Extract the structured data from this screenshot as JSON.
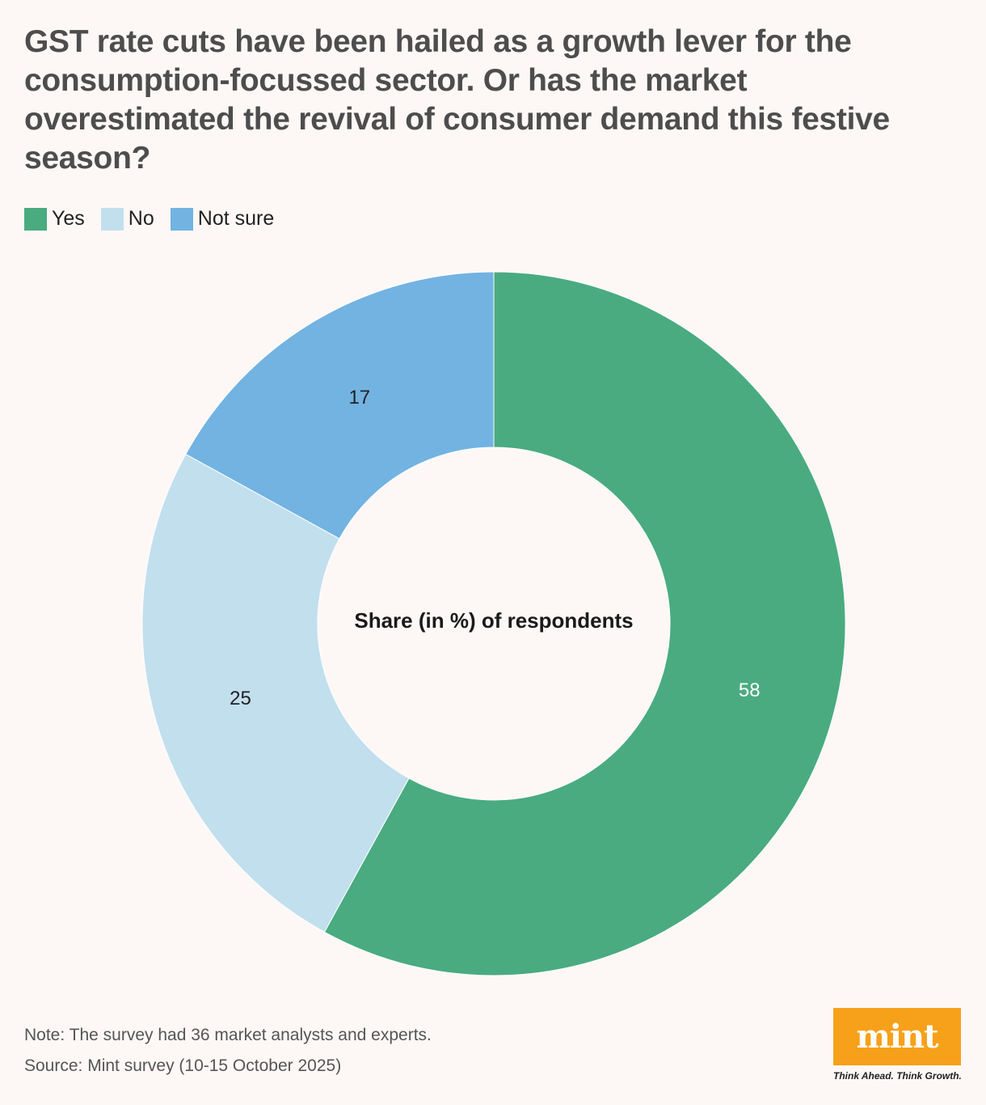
{
  "title": "GST rate cuts have been hailed as a growth lever for the consumption-focussed sector. Or has the market overestimated the revival of consumer demand this festive season?",
  "legend": [
    {
      "label": "Yes",
      "color": "#4aab80"
    },
    {
      "label": "No",
      "color": "#c2dfee"
    },
    {
      "label": "Not sure",
      "color": "#72b3e2"
    }
  ],
  "chart_data": {
    "type": "pie",
    "donut": true,
    "center_label": "Share (in %) of respondents",
    "categories": [
      "Yes",
      "No",
      "Not sure"
    ],
    "values": [
      58,
      25,
      17
    ],
    "colors": [
      "#4aab80",
      "#c2dfee",
      "#72b3e2"
    ],
    "label_colors": [
      "#ffffff",
      "#222222",
      "#222222"
    ],
    "legend_placement": "top-left"
  },
  "footer": {
    "note": "Note: The survey had 36 market analysts and experts.",
    "source": "Source: Mint survey (10-15 October 2025)"
  },
  "logo": {
    "text": "mint",
    "tagline": "Think Ahead. Think Growth."
  }
}
